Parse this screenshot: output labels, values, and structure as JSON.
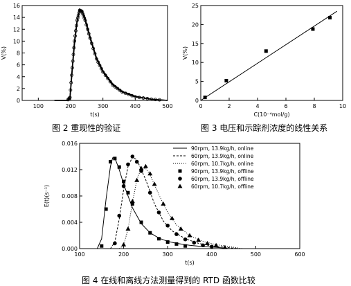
{
  "figure2": {
    "caption": "图 2 重现性的验证",
    "xlabel": "t(s)",
    "ylabel": "V(%)",
    "xticks": [
      "100",
      "200",
      "300",
      "400",
      "500"
    ],
    "yticks": [
      "0",
      "2",
      "4",
      "6",
      "8",
      "10",
      "12",
      "14",
      "16"
    ]
  },
  "figure3": {
    "caption": "图 3 电压和示踪剂浓度的线性关系",
    "xlabel": "C(10⁻⁴mol/g)",
    "ylabel": "V(%)",
    "xticks": [
      "0",
      "2",
      "4",
      "6",
      "8",
      "10"
    ],
    "yticks": [
      "0",
      "5",
      "10",
      "15",
      "20",
      "25"
    ]
  },
  "figure4": {
    "caption": "图 4 在线和离线方法测量得到的 RTD 函数比较",
    "xlabel": "t(s)",
    "ylabel": "E(t)(s⁻¹)",
    "xticks": [
      "100",
      "200",
      "300",
      "400",
      "500",
      "600"
    ],
    "yticks": [
      "0.000",
      "0.004",
      "0.008",
      "0.012",
      "0.016"
    ],
    "legend": [
      "90rpm, 13.9kg/h, online",
      "60rpm, 13.9kg/h, online",
      "60rpm, 10.7kg/h, online",
      "90rpm, 13.9kg/h, offline",
      "60rpm, 13.9kg/h, offline",
      "60rpm, 10.7kg/h, offline"
    ]
  },
  "chart_data": [
    {
      "type": "line",
      "title": "",
      "xlabel": "t(s)",
      "ylabel": "V(%)",
      "xlim": [
        50,
        500
      ],
      "ylim": [
        0,
        16
      ],
      "series": [
        {
          "x": [
            150,
            190,
            198,
            205,
            212,
            220,
            228,
            235,
            245,
            260,
            280,
            300,
            330,
            360,
            400,
            450,
            500
          ],
          "y": [
            0,
            0,
            0.5,
            5.5,
            10,
            13.5,
            15.2,
            15,
            13.5,
            10.5,
            7,
            4.8,
            2.6,
            1.4,
            0.6,
            0.2,
            0
          ]
        },
        {
          "x": [
            150,
            190,
            198,
            205,
            212,
            220,
            228,
            235,
            245,
            260,
            280,
            300,
            330,
            360,
            400,
            450,
            500
          ],
          "y": [
            0,
            0,
            0.4,
            5,
            9.5,
            13.2,
            15.4,
            15.2,
            13.8,
            10.8,
            7.2,
            5,
            2.8,
            1.5,
            0.7,
            0.2,
            0
          ]
        }
      ]
    },
    {
      "type": "scatter",
      "title": "",
      "xlabel": "C(10⁻⁴mol/g)",
      "ylabel": "V(%)",
      "xlim": [
        0,
        10
      ],
      "ylim": [
        0,
        25
      ],
      "series": [
        {
          "x": [
            0.3,
            1.8,
            4.6,
            7.9,
            9.1
          ],
          "y": [
            0.8,
            5.2,
            13,
            18.8,
            21.8
          ]
        }
      ],
      "fit_line": {
        "x": [
          0,
          9.6
        ],
        "y": [
          0,
          23.5
        ]
      }
    },
    {
      "type": "line",
      "title": "",
      "xlabel": "t(s)",
      "ylabel": "E(t)(s⁻¹)",
      "xlim": [
        100,
        600
      ],
      "ylim": [
        0,
        0.016
      ],
      "series": [
        {
          "name": "90rpm, 13.9kg/h, online",
          "x": [
            140,
            150,
            160,
            170,
            175,
            180,
            190,
            200,
            220,
            240,
            260,
            280,
            300,
            320,
            350,
            380,
            410,
            440
          ],
          "y": [
            0,
            0.0015,
            0.0075,
            0.0125,
            0.0138,
            0.0138,
            0.012,
            0.0098,
            0.0062,
            0.0038,
            0.0024,
            0.0016,
            0.0011,
            0.0008,
            0.0005,
            0.0003,
            0.0002,
            0
          ]
        },
        {
          "name": "60rpm, 13.9kg/h, online",
          "x": [
            170,
            180,
            190,
            200,
            210,
            220,
            230,
            250,
            270,
            290,
            310,
            340,
            370,
            400,
            430,
            460
          ],
          "y": [
            0,
            0.001,
            0.0045,
            0.009,
            0.0125,
            0.0139,
            0.0135,
            0.0105,
            0.0068,
            0.0042,
            0.0027,
            0.0015,
            0.0008,
            0.0004,
            0.0002,
            0
          ]
        },
        {
          "name": "60rpm, 10.7kg/h, online",
          "x": [
            190,
            200,
            210,
            220,
            230,
            240,
            250,
            260,
            280,
            300,
            320,
            350,
            380,
            410,
            440,
            470
          ],
          "y": [
            0,
            0.0005,
            0.003,
            0.007,
            0.0105,
            0.0122,
            0.0122,
            0.0112,
            0.0082,
            0.0055,
            0.0036,
            0.002,
            0.0011,
            0.0006,
            0.0003,
            0
          ]
        },
        {
          "name": "90rpm, 13.9kg/h, offline",
          "x": [
            150,
            160,
            170,
            180,
            190,
            200,
            210,
            220,
            240,
            260,
            280,
            300,
            320,
            340
          ],
          "y": [
            0.0004,
            0.006,
            0.0132,
            0.0137,
            0.0124,
            0.0102,
            0.0085,
            0.0068,
            0.004,
            0.0024,
            0.0015,
            0.001,
            0.0007,
            0.0004
          ]
        },
        {
          "name": "60rpm, 13.9kg/h, offline",
          "x": [
            180,
            190,
            200,
            210,
            220,
            230,
            240,
            260,
            280,
            300,
            320,
            340,
            360,
            380,
            400
          ],
          "y": [
            0.0008,
            0.005,
            0.0095,
            0.0128,
            0.014,
            0.0132,
            0.0118,
            0.0085,
            0.0055,
            0.0035,
            0.0022,
            0.0014,
            0.0009,
            0.0005,
            0.0003
          ]
        },
        {
          "name": "60rpm, 10.7kg/h, offline",
          "x": [
            200,
            210,
            220,
            230,
            240,
            250,
            260,
            270,
            290,
            310,
            330,
            350,
            370,
            390,
            410,
            430
          ],
          "y": [
            0.0006,
            0.003,
            0.0072,
            0.0104,
            0.0122,
            0.0125,
            0.0114,
            0.0098,
            0.0068,
            0.0046,
            0.003,
            0.002,
            0.0013,
            0.0008,
            0.0005,
            0.0002
          ]
        }
      ]
    }
  ]
}
